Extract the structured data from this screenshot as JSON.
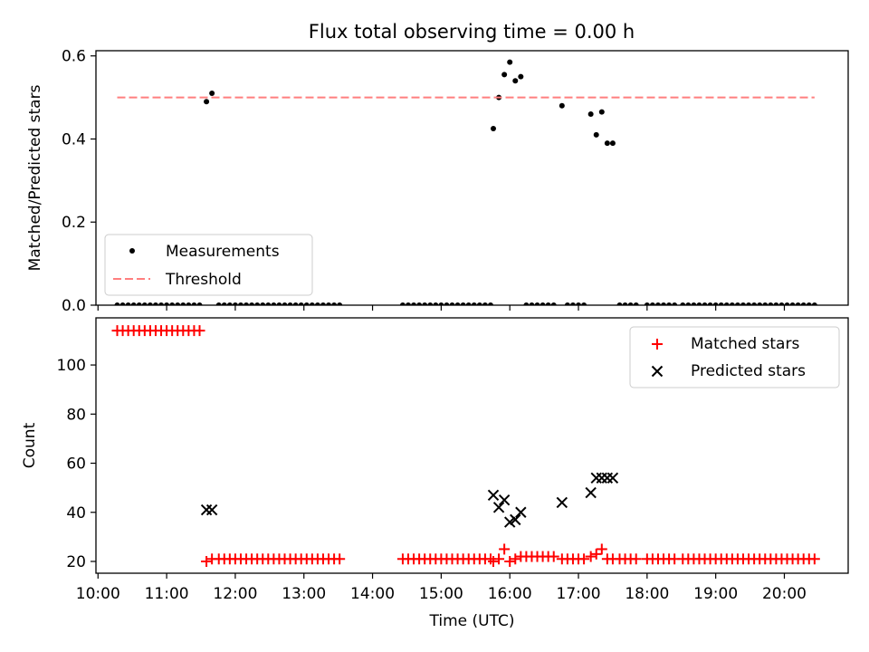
{
  "title": "Flux total observing time = 0.00 h",
  "colors": {
    "measurement": "#000000",
    "threshold": "#ff7f7f",
    "matched": "#ff0000",
    "predicted": "#000000",
    "axis": "#000000",
    "background": "#ffffff"
  },
  "chart_data": [
    {
      "type": "scatter",
      "title": "Flux total observing time = 0.00 h",
      "xlabel": "",
      "ylabel": "Matched/Predicted stars",
      "xlim": [
        9.97,
        20.93
      ],
      "ylim": [
        0,
        0.6125
      ],
      "yticks": [
        0,
        0.2,
        0.4,
        0.6
      ],
      "ytick_labels": [
        "0.0",
        "0.2",
        "0.4",
        "0.6"
      ],
      "xticks": [
        10,
        11,
        12,
        13,
        14,
        15,
        16,
        17,
        18,
        19,
        20
      ],
      "legend": {
        "placement": "lower-left",
        "entries": [
          "Measurements",
          "Threshold"
        ]
      },
      "series": [
        {
          "name": "Measurements",
          "marker": "dot",
          "x": [
            10.28,
            10.36,
            10.44,
            10.52,
            10.6,
            10.68,
            10.76,
            10.84,
            10.92,
            11.0,
            11.08,
            11.16,
            11.24,
            11.32,
            11.4,
            11.48,
            11.58,
            11.66,
            11.76,
            11.84,
            11.92,
            12.0,
            12.08,
            12.16,
            12.24,
            12.32,
            12.4,
            12.48,
            12.56,
            12.64,
            12.72,
            12.8,
            12.88,
            12.96,
            13.04,
            13.12,
            13.2,
            13.28,
            13.36,
            13.44,
            13.52,
            14.44,
            14.52,
            14.6,
            14.68,
            14.76,
            14.84,
            14.92,
            15.0,
            15.08,
            15.16,
            15.24,
            15.32,
            15.4,
            15.48,
            15.56,
            15.64,
            15.72,
            15.76,
            15.84,
            15.92,
            16.0,
            16.08,
            16.16,
            16.24,
            16.32,
            16.4,
            16.48,
            16.56,
            16.64,
            16.76,
            16.84,
            16.92,
            17.0,
            17.08,
            17.18,
            17.26,
            17.34,
            17.42,
            17.5,
            17.6,
            17.68,
            17.76,
            17.84,
            18.0,
            18.08,
            18.16,
            18.24,
            18.32,
            18.4,
            18.52,
            18.6,
            18.68,
            18.76,
            18.84,
            18.92,
            19.0,
            19.08,
            19.16,
            19.24,
            19.32,
            19.4,
            19.48,
            19.56,
            19.64,
            19.72,
            19.8,
            19.88,
            19.96,
            20.04,
            20.12,
            20.2,
            20.28,
            20.36,
            20.44
          ],
          "y": [
            0,
            0,
            0,
            0,
            0,
            0,
            0,
            0,
            0,
            0,
            0,
            0,
            0,
            0,
            0,
            0,
            0.49,
            0.51,
            0,
            0,
            0,
            0,
            0,
            0,
            0,
            0,
            0,
            0,
            0,
            0,
            0,
            0,
            0,
            0,
            0,
            0,
            0,
            0,
            0,
            0,
            0,
            0,
            0,
            0,
            0,
            0,
            0,
            0,
            0,
            0,
            0,
            0,
            0,
            0,
            0,
            0,
            0,
            0,
            0.425,
            0.5,
            0.555,
            0.585,
            0.54,
            0.55,
            0,
            0,
            0,
            0,
            0,
            0,
            0.48,
            0,
            0,
            0,
            0,
            0.46,
            0.41,
            0.465,
            0.39,
            0.39,
            0,
            0,
            0,
            0,
            0,
            0,
            0,
            0,
            0,
            0,
            0,
            0,
            0,
            0,
            0,
            0,
            0,
            0,
            0,
            0,
            0,
            0,
            0,
            0,
            0,
            0,
            0,
            0,
            0,
            0,
            0,
            0,
            0,
            0,
            0
          ]
        },
        {
          "name": "Threshold",
          "line": "dashed",
          "x": [
            10.28,
            20.44
          ],
          "y": [
            0.5,
            0.5
          ]
        }
      ]
    },
    {
      "type": "scatter",
      "xlabel": "Time (UTC)",
      "ylabel": "Count",
      "xlim": [
        9.97,
        20.93
      ],
      "ylim": [
        15.2,
        119.2
      ],
      "yticks": [
        20,
        40,
        60,
        80,
        100
      ],
      "ytick_labels": [
        "20",
        "40",
        "60",
        "80",
        "100"
      ],
      "xticks": [
        10,
        11,
        12,
        13,
        14,
        15,
        16,
        17,
        18,
        19,
        20
      ],
      "xtick_labels": [
        "10:00",
        "11:00",
        "12:00",
        "13:00",
        "14:00",
        "15:00",
        "16:00",
        "17:00",
        "18:00",
        "19:00",
        "20:00"
      ],
      "legend": {
        "placement": "upper-right",
        "entries": [
          "Matched stars",
          "Predicted stars"
        ]
      },
      "series": [
        {
          "name": "Matched stars",
          "marker": "plus",
          "x": [
            10.28,
            10.36,
            10.44,
            10.52,
            10.6,
            10.68,
            10.76,
            10.84,
            10.92,
            11.0,
            11.08,
            11.16,
            11.24,
            11.32,
            11.4,
            11.48,
            11.58,
            11.66,
            11.76,
            11.84,
            11.92,
            12.0,
            12.08,
            12.16,
            12.24,
            12.32,
            12.4,
            12.48,
            12.56,
            12.64,
            12.72,
            12.8,
            12.88,
            12.96,
            13.04,
            13.12,
            13.2,
            13.28,
            13.36,
            13.44,
            13.52,
            14.44,
            14.52,
            14.6,
            14.68,
            14.76,
            14.84,
            14.92,
            15.0,
            15.08,
            15.16,
            15.24,
            15.32,
            15.4,
            15.48,
            15.56,
            15.64,
            15.72,
            15.76,
            15.84,
            15.92,
            16.0,
            16.08,
            16.16,
            16.24,
            16.32,
            16.4,
            16.48,
            16.56,
            16.64,
            16.76,
            16.84,
            16.92,
            17.0,
            17.08,
            17.18,
            17.26,
            17.34,
            17.42,
            17.5,
            17.6,
            17.68,
            17.76,
            17.84,
            18.0,
            18.08,
            18.16,
            18.24,
            18.32,
            18.4,
            18.52,
            18.6,
            18.68,
            18.76,
            18.84,
            18.92,
            19.0,
            19.08,
            19.16,
            19.24,
            19.32,
            19.4,
            19.48,
            19.56,
            19.64,
            19.72,
            19.8,
            19.88,
            19.96,
            20.04,
            20.12,
            20.2,
            20.28,
            20.36,
            20.44
          ],
          "y": [
            114,
            114,
            114,
            114,
            114,
            114,
            114,
            114,
            114,
            114,
            114,
            114,
            114,
            114,
            114,
            114,
            20,
            21,
            21,
            21,
            21,
            21,
            21,
            21,
            21,
            21,
            21,
            21,
            21,
            21,
            21,
            21,
            21,
            21,
            21,
            21,
            21,
            21,
            21,
            21,
            21,
            21,
            21,
            21,
            21,
            21,
            21,
            21,
            21,
            21,
            21,
            21,
            21,
            21,
            21,
            21,
            21,
            21,
            20,
            21,
            25,
            20,
            21,
            22,
            22,
            22,
            22,
            22,
            22,
            22,
            21,
            21,
            21,
            21,
            21,
            22,
            23,
            25,
            21,
            21,
            21,
            21,
            21,
            21,
            21,
            21,
            21,
            21,
            21,
            21,
            21,
            21,
            21,
            21,
            21,
            21,
            21,
            21,
            21,
            21,
            21,
            21,
            21,
            21,
            21,
            21,
            21,
            21,
            21,
            21,
            21,
            21,
            21,
            21,
            21
          ]
        },
        {
          "name": "Predicted stars",
          "marker": "x",
          "x": [
            11.58,
            11.66,
            15.76,
            15.84,
            15.92,
            16.0,
            16.08,
            16.16,
            16.76,
            17.18,
            17.26,
            17.34,
            17.42,
            17.5
          ],
          "y": [
            41,
            41,
            47,
            42,
            45,
            36,
            37,
            40,
            44,
            48,
            54,
            54,
            54,
            54
          ]
        }
      ]
    }
  ]
}
